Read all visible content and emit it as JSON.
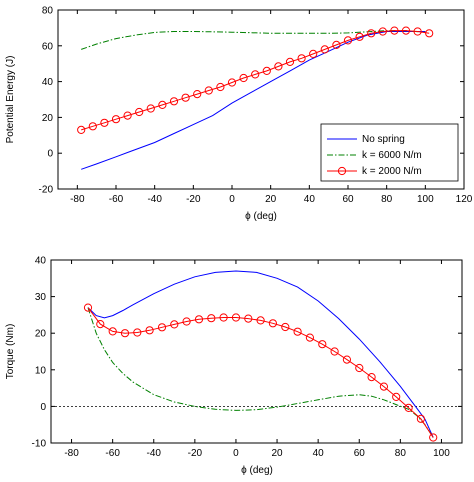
{
  "chart_data": [
    {
      "type": "line",
      "title": "",
      "xlabel": "ϕ (deg)",
      "ylabel": "Potential Energy (J)",
      "xlim": [
        -90,
        120
      ],
      "ylim": [
        -20,
        80
      ],
      "xticks": [
        -80,
        -60,
        -40,
        -20,
        0,
        20,
        40,
        60,
        80,
        100,
        120
      ],
      "yticks": [
        -20,
        0,
        20,
        40,
        60,
        80
      ],
      "grid": false,
      "legend_position": "bottom-right",
      "series": [
        {
          "name": "No spring",
          "color": "#0000ff",
          "style": "solid",
          "marker": "none",
          "points": [
            [
              -78,
              -9
            ],
            [
              -70,
              -6
            ],
            [
              -60,
              -2
            ],
            [
              -50,
              2
            ],
            [
              -40,
              6
            ],
            [
              -30,
              11
            ],
            [
              -20,
              16
            ],
            [
              -10,
              21
            ],
            [
              0,
              28
            ],
            [
              10,
              34
            ],
            [
              20,
              40
            ],
            [
              30,
              46
            ],
            [
              40,
              52
            ],
            [
              50,
              57
            ],
            [
              60,
              62
            ],
            [
              70,
              66
            ],
            [
              80,
              68
            ],
            [
              90,
              68
            ],
            [
              100,
              68
            ]
          ]
        },
        {
          "name": "k = 6000 N/m",
          "color": "#008000",
          "style": "dashdot",
          "marker": "none",
          "points": [
            [
              -78,
              58
            ],
            [
              -70,
              61
            ],
            [
              -60,
              64
            ],
            [
              -50,
              66
            ],
            [
              -40,
              67.5
            ],
            [
              -30,
              68
            ],
            [
              -20,
              68
            ],
            [
              -10,
              67.8
            ],
            [
              0,
              67.6
            ],
            [
              10,
              67.3
            ],
            [
              20,
              67
            ],
            [
              30,
              67
            ],
            [
              40,
              67
            ],
            [
              50,
              67
            ],
            [
              60,
              67.2
            ],
            [
              70,
              67.8
            ],
            [
              80,
              68.5
            ],
            [
              90,
              68.5
            ],
            [
              100,
              67.5
            ]
          ]
        },
        {
          "name": "k = 2000 N/m",
          "color": "#ff0000",
          "style": "solid",
          "marker": "circle",
          "points": [
            [
              -78,
              13
            ],
            [
              -72,
              15
            ],
            [
              -66,
              17
            ],
            [
              -60,
              19
            ],
            [
              -54,
              21
            ],
            [
              -48,
              23
            ],
            [
              -42,
              25
            ],
            [
              -36,
              27
            ],
            [
              -30,
              29
            ],
            [
              -24,
              31
            ],
            [
              -18,
              33
            ],
            [
              -12,
              35
            ],
            [
              -6,
              37
            ],
            [
              0,
              39.5
            ],
            [
              6,
              42
            ],
            [
              12,
              44
            ],
            [
              18,
              46
            ],
            [
              24,
              48.5
            ],
            [
              30,
              51
            ],
            [
              36,
              53
            ],
            [
              42,
              55.5
            ],
            [
              48,
              58
            ],
            [
              54,
              60.5
            ],
            [
              60,
              63
            ],
            [
              66,
              65
            ],
            [
              72,
              67
            ],
            [
              78,
              68
            ],
            [
              84,
              68.5
            ],
            [
              90,
              68.5
            ],
            [
              96,
              68
            ],
            [
              102,
              67
            ]
          ]
        }
      ]
    },
    {
      "type": "line",
      "title": "",
      "xlabel": "ϕ (deg)",
      "ylabel": "Torque (Nm)",
      "xlim": [
        -90,
        110
      ],
      "ylim": [
        -10,
        40
      ],
      "xticks": [
        -80,
        -60,
        -40,
        -20,
        0,
        20,
        40,
        60,
        80,
        100
      ],
      "yticks": [
        -10,
        0,
        10,
        20,
        30,
        40
      ],
      "grid": false,
      "reference_line": {
        "y": 0,
        "color": "#000000",
        "style": "dotted"
      },
      "series": [
        {
          "name": "No spring",
          "color": "#0000ff",
          "style": "solid",
          "marker": "none",
          "points": [
            [
              -72,
              27
            ],
            [
              -68,
              24.8
            ],
            [
              -64,
              24.2
            ],
            [
              -60,
              24.8
            ],
            [
              -55,
              26.2
            ],
            [
              -50,
              27.8
            ],
            [
              -40,
              30.8
            ],
            [
              -30,
              33.4
            ],
            [
              -20,
              35.4
            ],
            [
              -10,
              36.6
            ],
            [
              0,
              37
            ],
            [
              10,
              36.6
            ],
            [
              20,
              35
            ],
            [
              30,
              32.6
            ],
            [
              40,
              28.8
            ],
            [
              50,
              24
            ],
            [
              60,
              18.4
            ],
            [
              70,
              12.2
            ],
            [
              80,
              5.5
            ],
            [
              88,
              -0.5
            ],
            [
              92,
              -3.5
            ],
            [
              96,
              -8.5
            ]
          ]
        },
        {
          "name": "k = 6000 N/m",
          "color": "#008000",
          "style": "dashdot",
          "marker": "none",
          "points": [
            [
              -72,
              27
            ],
            [
              -68,
              20
            ],
            [
              -64,
              15.5
            ],
            [
              -60,
              12
            ],
            [
              -55,
              9
            ],
            [
              -50,
              6.6
            ],
            [
              -40,
              3.2
            ],
            [
              -30,
              1.2
            ],
            [
              -20,
              0
            ],
            [
              -10,
              -0.8
            ],
            [
              0,
              -1.1
            ],
            [
              10,
              -0.9
            ],
            [
              20,
              -0.2
            ],
            [
              30,
              0.8
            ],
            [
              40,
              1.8
            ],
            [
              50,
              2.8
            ],
            [
              60,
              3.2
            ],
            [
              66,
              2.8
            ],
            [
              72,
              1.8
            ],
            [
              78,
              0.5
            ],
            [
              84,
              -0.8
            ],
            [
              88,
              -2.5
            ],
            [
              92,
              -5
            ],
            [
              96,
              -8.5
            ]
          ]
        },
        {
          "name": "k = 2000 N/m",
          "color": "#ff0000",
          "style": "solid",
          "marker": "circle",
          "points": [
            [
              -72,
              27
            ],
            [
              -66,
              22.5
            ],
            [
              -60,
              20.5
            ],
            [
              -54,
              20
            ],
            [
              -48,
              20.2
            ],
            [
              -42,
              20.8
            ],
            [
              -36,
              21.6
            ],
            [
              -30,
              22.4
            ],
            [
              -24,
              23.2
            ],
            [
              -18,
              23.8
            ],
            [
              -12,
              24.1
            ],
            [
              -6,
              24.3
            ],
            [
              0,
              24.3
            ],
            [
              6,
              24
            ],
            [
              12,
              23.5
            ],
            [
              18,
              22.7
            ],
            [
              24,
              21.7
            ],
            [
              30,
              20.4
            ],
            [
              36,
              18.8
            ],
            [
              42,
              17
            ],
            [
              48,
              15
            ],
            [
              54,
              12.8
            ],
            [
              60,
              10.5
            ],
            [
              66,
              8
            ],
            [
              72,
              5.4
            ],
            [
              78,
              2.6
            ],
            [
              84,
              -0.4
            ],
            [
              90,
              -3.4
            ],
            [
              96,
              -8.5
            ]
          ]
        }
      ]
    }
  ]
}
